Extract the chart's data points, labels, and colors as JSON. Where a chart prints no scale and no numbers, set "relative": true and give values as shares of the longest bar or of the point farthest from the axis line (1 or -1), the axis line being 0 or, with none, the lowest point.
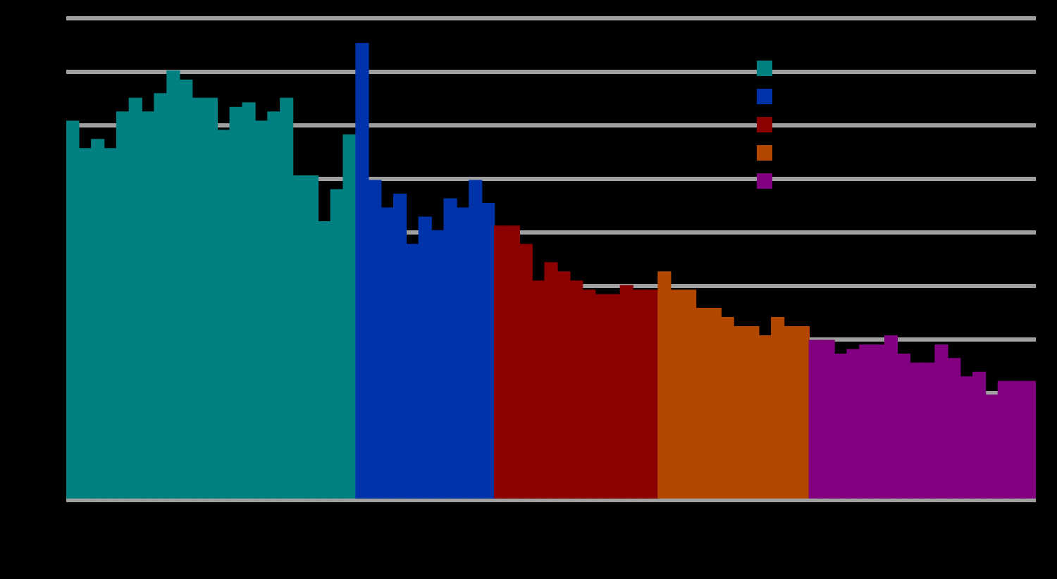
{
  "chart_data": {
    "type": "bar",
    "relative": true,
    "grid": "y",
    "categories": [
      null,
      null,
      null,
      null,
      null,
      null,
      null,
      null,
      null,
      null,
      null,
      null,
      null,
      null,
      null,
      null,
      null,
      null,
      null,
      null,
      null,
      null,
      null,
      null,
      null,
      null,
      null,
      null,
      null,
      null,
      null,
      null,
      null,
      null,
      null,
      null,
      null,
      null,
      null,
      null,
      null,
      null,
      null,
      null,
      null,
      null,
      null,
      null,
      null,
      null,
      null,
      null,
      null,
      null,
      null,
      null,
      null,
      null,
      null,
      null,
      null,
      null,
      null,
      null,
      null,
      null,
      null,
      null,
      null,
      null,
      null,
      null,
      null,
      null,
      null,
      null,
      null
    ],
    "values": [
      0.83,
      0.77,
      0.79,
      0.77,
      0.85,
      0.88,
      0.85,
      0.89,
      0.94,
      0.92,
      0.88,
      0.88,
      0.81,
      0.86,
      0.87,
      0.83,
      0.85,
      0.88,
      0.71,
      0.71,
      0.61,
      0.68,
      0.8,
      1,
      0.7,
      0.64,
      0.67,
      0.56,
      0.62,
      0.59,
      0.66,
      0.64,
      0.7,
      0.65,
      0.6,
      0.6,
      0.56,
      0.48,
      0.52,
      0.5,
      0.48,
      0.46,
      0.45,
      0.45,
      0.47,
      0.46,
      0.46,
      0.5,
      0.46,
      0.46,
      0.42,
      0.42,
      0.4,
      0.38,
      0.38,
      0.36,
      0.4,
      0.38,
      0.38,
      0.35,
      0.35,
      0.32,
      0.33,
      0.34,
      0.34,
      0.36,
      0.32,
      0.3,
      0.3,
      0.34,
      0.31,
      0.27,
      0.28,
      0.23,
      0.26,
      0.26,
      0.26
    ],
    "colors": [
      "#008080",
      "#008080",
      "#008080",
      "#008080",
      "#008080",
      "#008080",
      "#008080",
      "#008080",
      "#008080",
      "#008080",
      "#008080",
      "#008080",
      "#008080",
      "#008080",
      "#008080",
      "#008080",
      "#008080",
      "#008080",
      "#008080",
      "#008080",
      "#008080",
      "#008080",
      "#008080",
      "#0033aa",
      "#0033aa",
      "#0033aa",
      "#0033aa",
      "#0033aa",
      "#0033aa",
      "#0033aa",
      "#0033aa",
      "#0033aa",
      "#0033aa",
      "#0033aa",
      "#8b0000",
      "#8b0000",
      "#8b0000",
      "#8b0000",
      "#8b0000",
      "#8b0000",
      "#8b0000",
      "#8b0000",
      "#8b0000",
      "#8b0000",
      "#8b0000",
      "#8b0000",
      "#8b0000",
      "#b34700",
      "#b34700",
      "#b34700",
      "#b34700",
      "#b34700",
      "#b34700",
      "#b34700",
      "#b34700",
      "#b34700",
      "#b34700",
      "#b34700",
      "#b34700",
      "#800080",
      "#800080",
      "#800080",
      "#800080",
      "#800080",
      "#800080",
      "#800080",
      "#800080",
      "#800080",
      "#800080",
      "#800080",
      "#800080",
      "#800080",
      "#800080",
      "#800080",
      "#800080",
      "#800080",
      "#800080"
    ]
  }
}
